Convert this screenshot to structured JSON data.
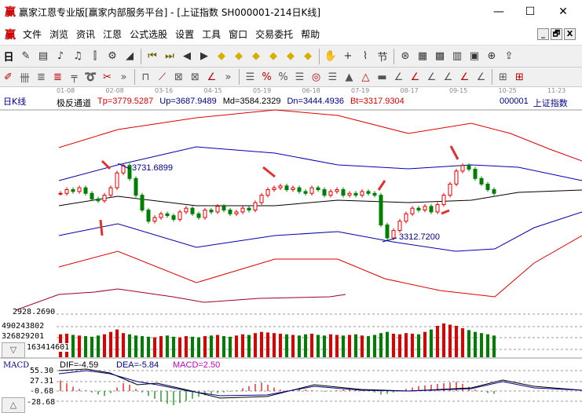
{
  "window": {
    "title": "赢家江恩专业版[赢家内部服务平台] - [上证指数  SH000001-214日K线]",
    "logo": "赢",
    "minimize": "—",
    "maximize": "☐",
    "close": "✕"
  },
  "menu": {
    "logo": "赢",
    "items": [
      "文件",
      "浏览",
      "资讯",
      "江恩",
      "公式选股",
      "设置",
      "工具",
      "窗口",
      "交易委托",
      "帮助"
    ],
    "mdi": [
      "_",
      "🗗",
      "X"
    ]
  },
  "toolbar1": {
    "period": "日",
    "icons": [
      "day-selector",
      "formula",
      "notes",
      "chart-3",
      "chart-9",
      "candle",
      "settings",
      "color-bar",
      "first",
      "last",
      "prev",
      "next",
      "nav1",
      "nav2",
      "nav3",
      "nav4",
      "nav5",
      "nav6",
      "hand",
      "crosshair",
      "line",
      "jie",
      "zoom",
      "calendar",
      "calculator",
      "report",
      "save",
      "network",
      "export"
    ]
  },
  "toolbar2": {
    "icons": [
      "pen",
      "hline",
      "gann-box",
      "gann-grid",
      "gann-fan",
      "spiral",
      "eraser",
      "more",
      "rect",
      "fan",
      "square-grid",
      "square-fan",
      "angle",
      "more2",
      "list",
      "percent-tool",
      "percent",
      "level",
      "gold-circle",
      "gold-lines",
      "cone",
      "triangle",
      "gold-bar",
      "angle-j",
      "angle-f",
      "gold-angle",
      "angle-x",
      "angle-z",
      "angle-s",
      "grid1",
      "grid2"
    ]
  },
  "chart_header": {
    "period_label": "日K线",
    "dates": [
      "01-08",
      "02-08",
      "03-16",
      "04-15",
      "05-19",
      "06-18",
      "07-19",
      "08-17",
      "09-15",
      "10-25",
      "11-23"
    ]
  },
  "indicator": {
    "name": "极反通道",
    "tp": "Tp=3779.5287",
    "up": "Up=3687.9489",
    "md": "Md=3584.2329",
    "dn": "Dn=3444.4936",
    "bt": "Bt=3317.9304",
    "code": "000001",
    "symbol": "上证指数"
  },
  "colors": {
    "up": "#e00000",
    "down": "#008000",
    "band_outer": "#e00000",
    "band_inner": "#0000b0",
    "mid": "#000000",
    "dif": "#000000",
    "dea": "#00008b",
    "macd": "#c000c0"
  },
  "chart_data": {
    "type": "candlestick",
    "annotations": {
      "high": "3731.6899",
      "low": "3312.7200"
    },
    "price_axis_label": "2928.2690",
    "closes": [
      3570,
      3590,
      3580,
      3600,
      3570,
      3540,
      3530,
      3560,
      3600,
      3680,
      3720,
      3650,
      3560,
      3480,
      3420,
      3440,
      3460,
      3450,
      3430,
      3470,
      3490,
      3460,
      3440,
      3480,
      3470,
      3500,
      3480,
      3460,
      3470,
      3490,
      3480,
      3520,
      3560,
      3590,
      3600,
      3610,
      3590,
      3600,
      3580,
      3570,
      3600,
      3590,
      3560,
      3580,
      3590,
      3560,
      3570,
      3560,
      3580,
      3570,
      3560,
      3400,
      3330,
      3370,
      3420,
      3460,
      3490,
      3480,
      3500,
      3470,
      3510,
      3560,
      3620,
      3690,
      3720,
      3700,
      3650,
      3620,
      3590,
      3570
    ],
    "volume_axis": [
      "490243802",
      "326829201",
      "163414601"
    ],
    "volumes": [
      380,
      390,
      370,
      360,
      350,
      340,
      360,
      380,
      420,
      460,
      400,
      380,
      360,
      350,
      340,
      330,
      350,
      360,
      340,
      330,
      350,
      340,
      330,
      350,
      360,
      370,
      350,
      340,
      360,
      380,
      370,
      400,
      420,
      410,
      400,
      390,
      380,
      370,
      360,
      380,
      390,
      370,
      360,
      380,
      370,
      360,
      370,
      380,
      360,
      350,
      370,
      400,
      420,
      390,
      380,
      400,
      390,
      380,
      420,
      460,
      520,
      560,
      540,
      520,
      480,
      450,
      420,
      400,
      380,
      360
    ],
    "macd_axis": [
      "55.30",
      "27.31",
      "-0.68",
      "-28.68"
    ],
    "macd_hist": [
      30,
      22,
      12,
      6,
      2,
      -4,
      -10,
      -14,
      -6,
      10,
      22,
      18,
      6,
      -4,
      -14,
      -22,
      -30,
      -36,
      -40,
      -34,
      -28,
      -22,
      -16,
      -12,
      -8,
      -6,
      -4,
      -2,
      2,
      8,
      14,
      20,
      24,
      18,
      10,
      4,
      2,
      4,
      6,
      4,
      2,
      0,
      -2,
      -1,
      2,
      4,
      6,
      4,
      2,
      0,
      -4,
      -10,
      -8,
      -4,
      0,
      6,
      10,
      14,
      16,
      18,
      20,
      22,
      24,
      26,
      20,
      12,
      4,
      -2,
      -6,
      -8
    ],
    "dif": "DIF=-4.59",
    "dea": "DEA=-5.84",
    "macd": "MACD=2.50"
  },
  "macd_label": "MACD",
  "scroll": {
    "down": "▽",
    "up": "△"
  }
}
